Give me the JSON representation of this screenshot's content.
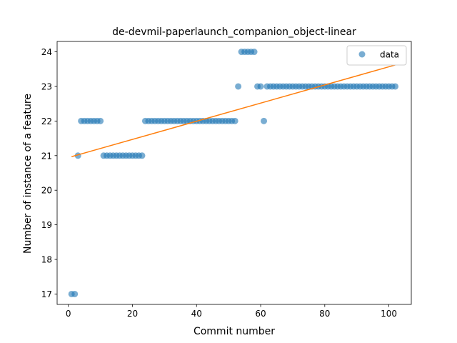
{
  "chart_data": {
    "type": "scatter",
    "title": "de-devmil-paperlaunch_companion_object-linear",
    "xlabel": "Commit number",
    "ylabel": "Number of instance of a feature",
    "xlim": [
      -3.5,
      107
    ],
    "ylim": [
      16.7,
      24.3
    ],
    "xticks": [
      0,
      20,
      40,
      60,
      80,
      100
    ],
    "yticks": [
      17,
      18,
      19,
      20,
      21,
      22,
      23,
      24
    ],
    "grid": false,
    "legend_position": "top-right",
    "colors": {
      "points": "#1f77b4",
      "fit": "#ff7f0e"
    },
    "series": [
      {
        "name": "data",
        "kind": "points",
        "x": [
          1,
          2,
          3,
          4,
          5,
          6,
          7,
          8,
          9,
          10,
          11,
          12,
          13,
          14,
          15,
          16,
          17,
          18,
          19,
          20,
          21,
          22,
          23,
          24,
          25,
          26,
          27,
          28,
          29,
          30,
          31,
          32,
          33,
          34,
          35,
          36,
          37,
          38,
          39,
          40,
          41,
          42,
          43,
          44,
          45,
          46,
          47,
          48,
          49,
          50,
          51,
          52,
          53,
          54,
          55,
          56,
          57,
          58,
          59,
          60,
          61,
          62,
          63,
          64,
          65,
          66,
          67,
          68,
          69,
          70,
          71,
          72,
          73,
          74,
          75,
          76,
          77,
          78,
          79,
          80,
          81,
          82,
          83,
          84,
          85,
          86,
          87,
          88,
          89,
          90,
          91,
          92,
          93,
          94,
          95,
          96,
          97,
          98,
          99,
          100,
          101,
          102
        ],
        "y": [
          17,
          17,
          21,
          22,
          22,
          22,
          22,
          22,
          22,
          22,
          21,
          21,
          21,
          21,
          21,
          21,
          21,
          21,
          21,
          21,
          21,
          21,
          21,
          22,
          22,
          22,
          22,
          22,
          22,
          22,
          22,
          22,
          22,
          22,
          22,
          22,
          22,
          22,
          22,
          22,
          22,
          22,
          22,
          22,
          22,
          22,
          22,
          22,
          22,
          22,
          22,
          22,
          23,
          24,
          24,
          24,
          24,
          24,
          23,
          23,
          22,
          23,
          23,
          23,
          23,
          23,
          23,
          23,
          23,
          23,
          23,
          23,
          23,
          23,
          23,
          23,
          23,
          23,
          23,
          23,
          23,
          23,
          23,
          23,
          23,
          23,
          23,
          23,
          23,
          23,
          23,
          23,
          23,
          23,
          23,
          23,
          23,
          23,
          23,
          23,
          23,
          23
        ]
      },
      {
        "kind": "fit",
        "x": [
          1,
          102
        ],
        "y": [
          20.97,
          23.62
        ]
      }
    ]
  }
}
